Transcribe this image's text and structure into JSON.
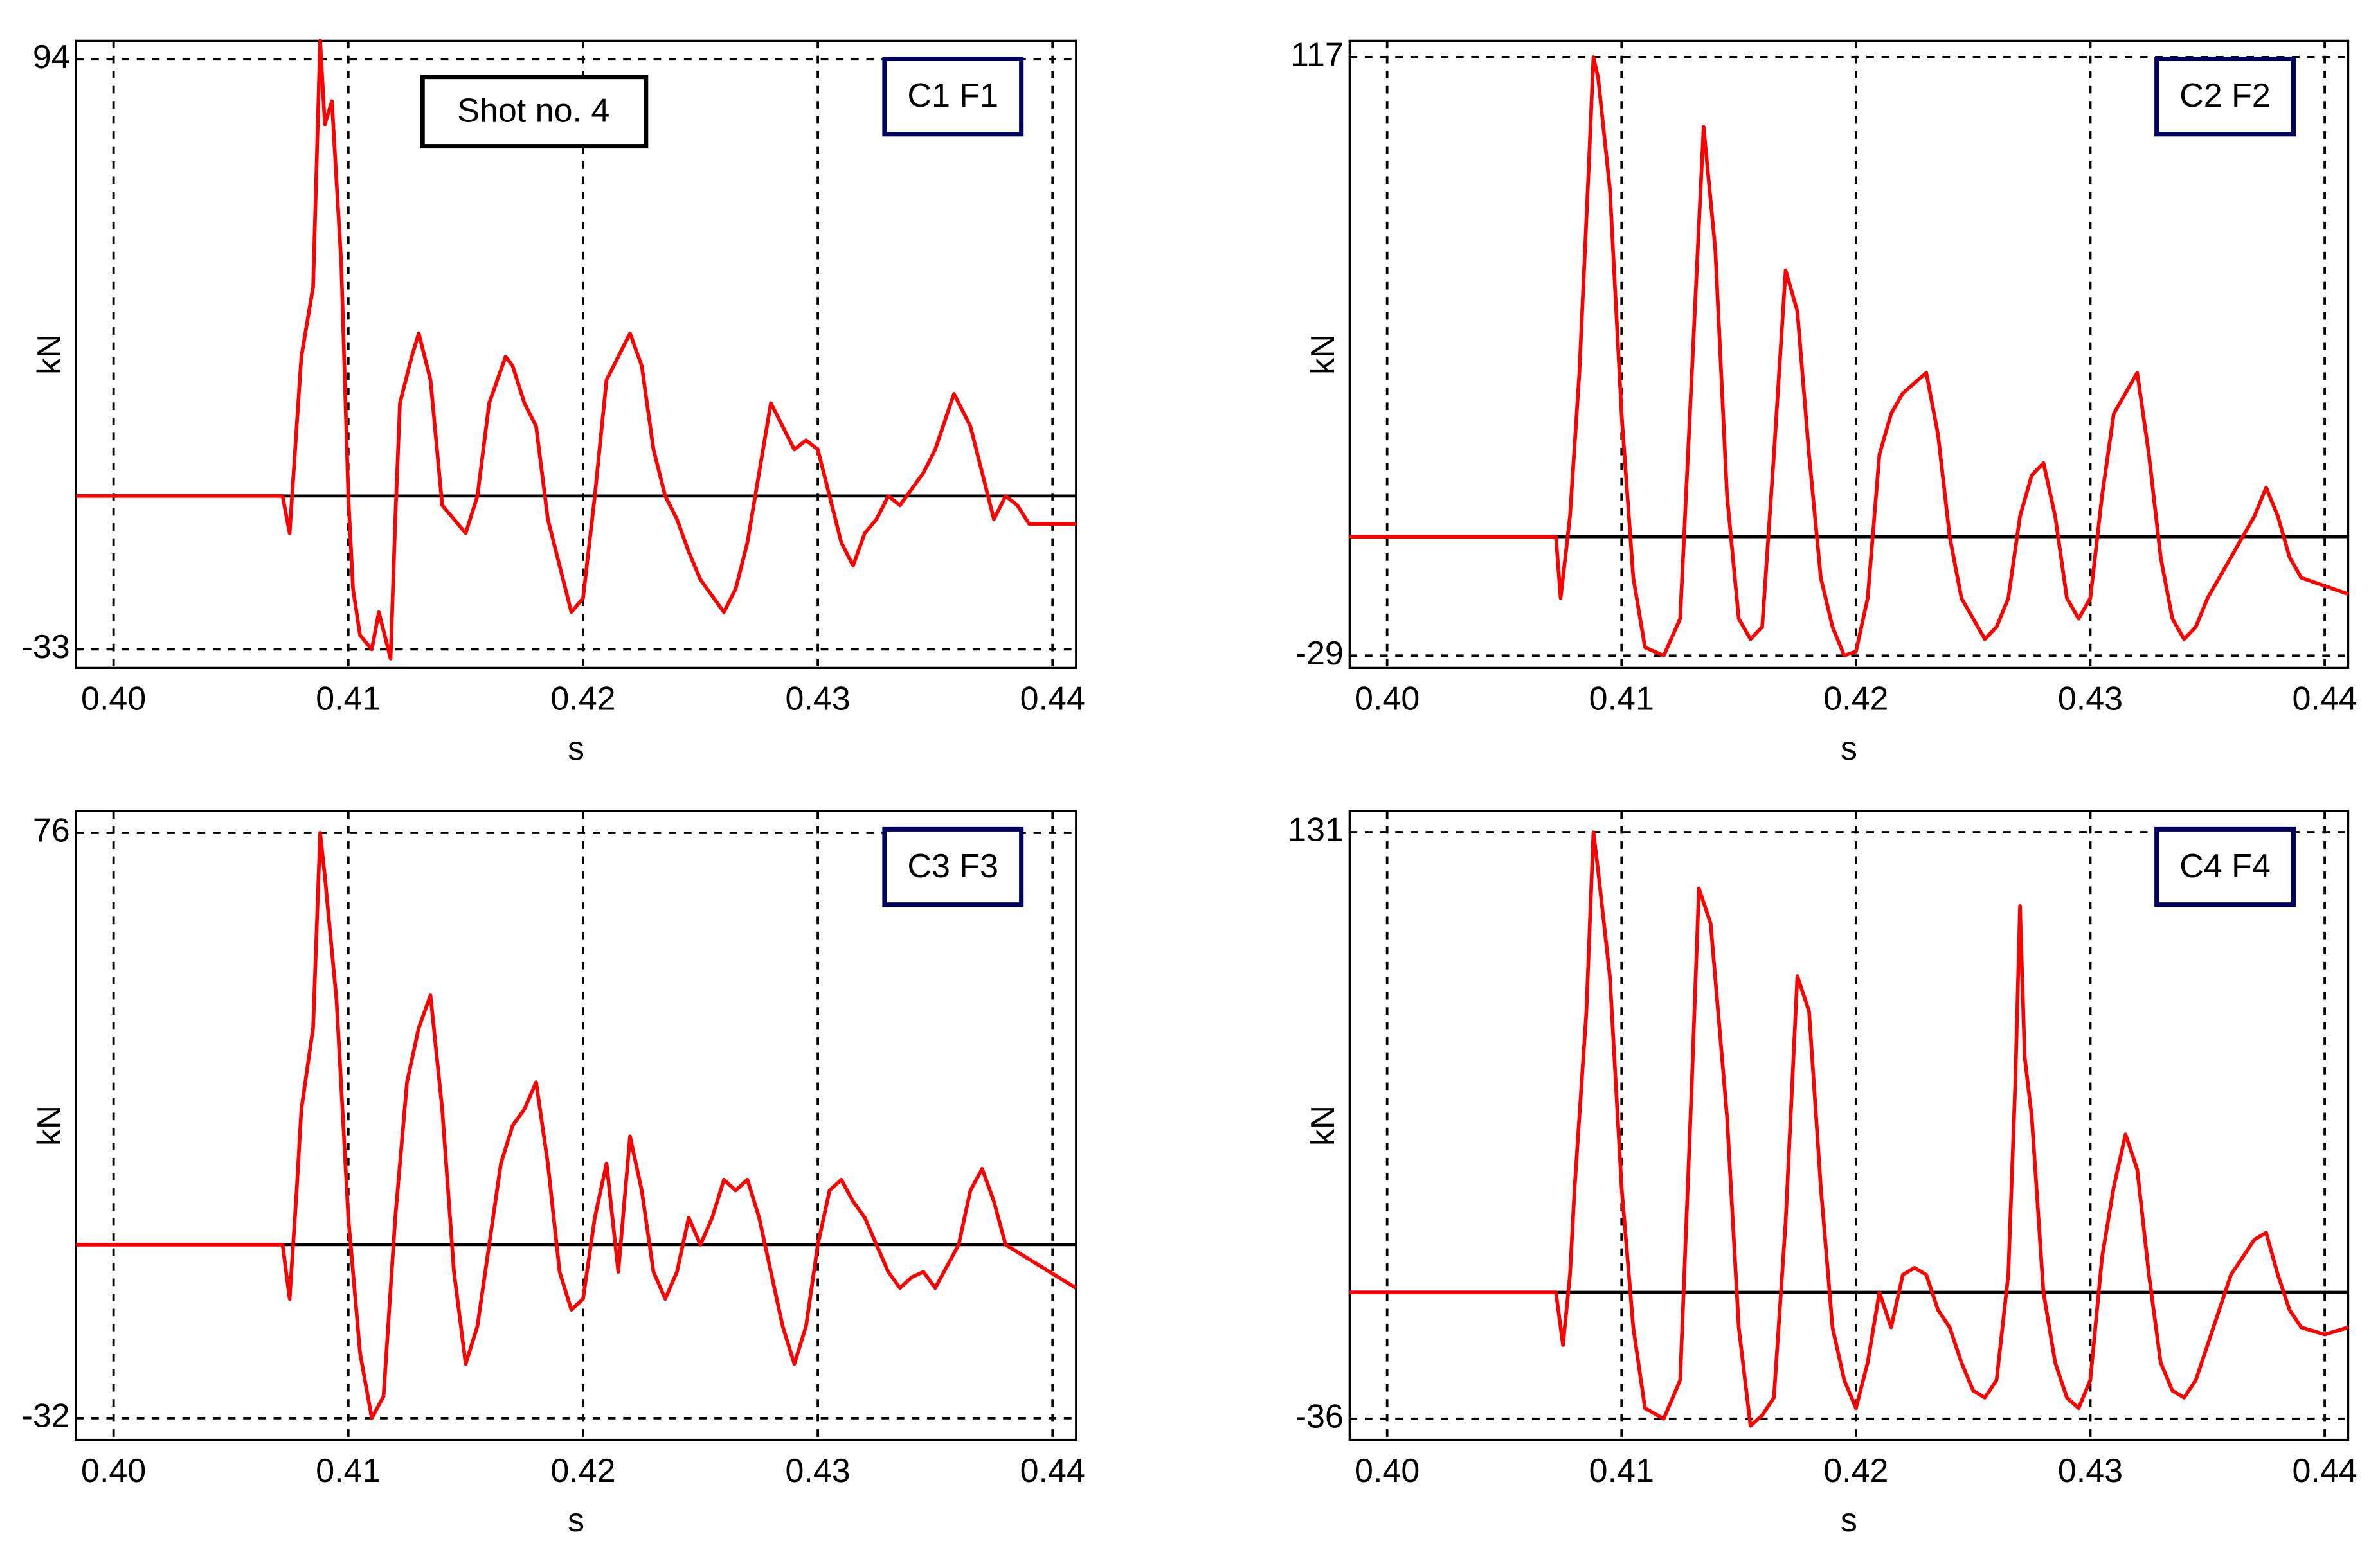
{
  "chart_data": [
    {
      "type": "line",
      "annotation": "C1 F1",
      "note": "Shot no. 4",
      "x_label": "s",
      "y_label": "kN",
      "color": "#ff0000",
      "grid": true,
      "xlim": [
        0.3984,
        0.441
      ],
      "ylim": [
        -37,
        98
      ],
      "xticks": [
        {
          "value": 0.4,
          "label": "0.40"
        },
        0.41,
        0.42,
        0.43,
        0.44
      ],
      "yticks": [
        -33,
        94
      ],
      "x": [
        0.3984,
        0.4072,
        0.4075,
        0.4078,
        0.408,
        0.4085,
        0.4088,
        0.409,
        0.4093,
        0.4097,
        0.41,
        0.4102,
        0.4105,
        0.411,
        0.4113,
        0.4118,
        0.412,
        0.4122,
        0.4127,
        0.413,
        0.4135,
        0.414,
        0.4145,
        0.415,
        0.4155,
        0.416,
        0.4167,
        0.417,
        0.4175,
        0.418,
        0.4185,
        0.419,
        0.4195,
        0.42,
        0.4205,
        0.421,
        0.4215,
        0.422,
        0.4225,
        0.423,
        0.4235,
        0.424,
        0.4245,
        0.425,
        0.426,
        0.4265,
        0.427,
        0.4275,
        0.428,
        0.4285,
        0.429,
        0.4295,
        0.43,
        0.4305,
        0.431,
        0.4315,
        0.432,
        0.4325,
        0.433,
        0.4335,
        0.4345,
        0.435,
        0.4358,
        0.4365,
        0.437,
        0.4375,
        0.438,
        0.4385,
        0.439,
        0.441
      ],
      "values": [
        0,
        0,
        -8,
        15,
        30,
        45,
        98,
        80,
        85,
        50,
        0,
        -20,
        -30,
        -33,
        -25,
        -35,
        -5,
        20,
        30,
        35,
        25,
        -2,
        -5,
        -8,
        0,
        20,
        30,
        28,
        20,
        15,
        -5,
        -15,
        -25,
        -22,
        0,
        25,
        30,
        35,
        28,
        10,
        0,
        -5,
        -12,
        -18,
        -25,
        -20,
        -10,
        5,
        20,
        15,
        10,
        12,
        10,
        0,
        -10,
        -15,
        -8,
        -5,
        0,
        -2,
        5,
        10,
        22,
        15,
        5,
        -5,
        0,
        -2,
        -6,
        -6
      ]
    },
    {
      "type": "line",
      "annotation": "C2 F2",
      "x_label": "s",
      "y_label": "kN",
      "color": "#ff0000",
      "grid": true,
      "xlim": [
        0.3984,
        0.441
      ],
      "ylim": [
        -32,
        121
      ],
      "xticks": [
        {
          "value": 0.4,
          "label": "0.40"
        },
        0.41,
        0.42,
        0.43,
        0.44
      ],
      "yticks": [
        -29,
        117
      ],
      "x": [
        0.3984,
        0.4072,
        0.4074,
        0.4078,
        0.4082,
        0.4086,
        0.4088,
        0.409,
        0.4095,
        0.41,
        0.4105,
        0.411,
        0.4118,
        0.4125,
        0.413,
        0.4135,
        0.414,
        0.4145,
        0.415,
        0.4155,
        0.416,
        0.4165,
        0.417,
        0.4175,
        0.418,
        0.4185,
        0.419,
        0.4195,
        0.42,
        0.4205,
        0.421,
        0.4215,
        0.422,
        0.423,
        0.4235,
        0.424,
        0.4245,
        0.425,
        0.4255,
        0.426,
        0.4265,
        0.427,
        0.4275,
        0.428,
        0.4285,
        0.429,
        0.4295,
        0.43,
        0.4305,
        0.431,
        0.432,
        0.4325,
        0.433,
        0.4335,
        0.434,
        0.4345,
        0.435,
        0.4355,
        0.436,
        0.437,
        0.4375,
        0.438,
        0.4385,
        0.439,
        0.44,
        0.441
      ],
      "values": [
        0,
        0,
        -15,
        5,
        40,
        90,
        117,
        112,
        85,
        30,
        -10,
        -27,
        -29,
        -20,
        40,
        100,
        70,
        10,
        -20,
        -25,
        -22,
        20,
        65,
        55,
        20,
        -10,
        -22,
        -29,
        -28,
        -15,
        20,
        30,
        35,
        40,
        25,
        0,
        -15,
        -20,
        -25,
        -22,
        -15,
        5,
        15,
        18,
        5,
        -15,
        -20,
        -15,
        10,
        30,
        40,
        20,
        -5,
        -20,
        -25,
        -22,
        -15,
        -10,
        -5,
        5,
        12,
        5,
        -5,
        -10,
        -12,
        -14
      ]
    },
    {
      "type": "line",
      "annotation": "C3 F3",
      "x_label": "s",
      "y_label": "kN",
      "color": "#ff0000",
      "grid": true,
      "xlim": [
        0.3984,
        0.441
      ],
      "ylim": [
        -36,
        80
      ],
      "xticks": [
        {
          "value": 0.4,
          "label": "0.40"
        },
        0.41,
        0.42,
        0.43,
        0.44
      ],
      "yticks": [
        -32,
        76
      ],
      "x": [
        0.3984,
        0.4072,
        0.4075,
        0.4078,
        0.408,
        0.4085,
        0.4088,
        0.409,
        0.4095,
        0.41,
        0.4105,
        0.411,
        0.4115,
        0.412,
        0.4125,
        0.413,
        0.4135,
        0.414,
        0.4145,
        0.415,
        0.4155,
        0.416,
        0.4165,
        0.417,
        0.4175,
        0.418,
        0.4185,
        0.419,
        0.4195,
        0.42,
        0.4205,
        0.421,
        0.4215,
        0.422,
        0.4225,
        0.423,
        0.4235,
        0.424,
        0.4245,
        0.425,
        0.4255,
        0.426,
        0.4265,
        0.427,
        0.4275,
        0.428,
        0.4285,
        0.429,
        0.4295,
        0.43,
        0.4305,
        0.431,
        0.4315,
        0.432,
        0.4325,
        0.433,
        0.4335,
        0.434,
        0.4345,
        0.435,
        0.436,
        0.4365,
        0.437,
        0.4375,
        0.438,
        0.441
      ],
      "values": [
        0,
        0,
        -10,
        10,
        25,
        40,
        76,
        68,
        45,
        5,
        -20,
        -32,
        -28,
        5,
        30,
        40,
        46,
        25,
        -5,
        -22,
        -15,
        0,
        15,
        22,
        25,
        30,
        15,
        -5,
        -12,
        -10,
        5,
        15,
        -5,
        20,
        10,
        -5,
        -10,
        -5,
        5,
        0,
        5,
        12,
        10,
        12,
        5,
        -5,
        -15,
        -22,
        -15,
        0,
        10,
        12,
        8,
        5,
        0,
        -5,
        -8,
        -6,
        -5,
        -8,
        0,
        10,
        14,
        8,
        0,
        -8
      ]
    },
    {
      "type": "line",
      "annotation": "C4 F4",
      "x_label": "s",
      "y_label": "kN",
      "color": "#ff0000",
      "grid": true,
      "xlim": [
        0.3984,
        0.441
      ],
      "ylim": [
        -42,
        137
      ],
      "xticks": [
        {
          "value": 0.4,
          "label": "0.40"
        },
        0.41,
        0.42,
        0.43,
        0.44
      ],
      "yticks": [
        -36,
        131
      ],
      "x": [
        0.3984,
        0.4072,
        0.4075,
        0.4078,
        0.408,
        0.4085,
        0.4088,
        0.409,
        0.4095,
        0.41,
        0.4105,
        0.411,
        0.4118,
        0.4125,
        0.413,
        0.4133,
        0.4138,
        0.4145,
        0.415,
        0.4155,
        0.416,
        0.4165,
        0.417,
        0.4175,
        0.418,
        0.4185,
        0.419,
        0.4195,
        0.42,
        0.4205,
        0.421,
        0.4215,
        0.422,
        0.4225,
        0.423,
        0.4235,
        0.424,
        0.4245,
        0.425,
        0.4255,
        0.426,
        0.4265,
        0.4268,
        0.427,
        0.4272,
        0.4275,
        0.428,
        0.4285,
        0.429,
        0.4295,
        0.43,
        0.4305,
        0.431,
        0.4315,
        0.432,
        0.4325,
        0.433,
        0.4335,
        0.434,
        0.4345,
        0.435,
        0.436,
        0.437,
        0.4375,
        0.438,
        0.4385,
        0.439,
        0.44,
        0.441
      ],
      "values": [
        0,
        0,
        -15,
        5,
        30,
        80,
        131,
        120,
        90,
        30,
        -10,
        -33,
        -36,
        -25,
        60,
        115,
        105,
        50,
        -10,
        -38,
        -35,
        -30,
        20,
        90,
        80,
        30,
        -10,
        -25,
        -33,
        -20,
        0,
        -10,
        5,
        7,
        5,
        -5,
        -10,
        -20,
        -28,
        -30,
        -25,
        5,
        60,
        110,
        67,
        50,
        0,
        -20,
        -30,
        -33,
        -25,
        10,
        30,
        45,
        35,
        5,
        -20,
        -28,
        -30,
        -25,
        -15,
        5,
        15,
        17,
        5,
        -5,
        -10,
        -12,
        -10
      ]
    }
  ]
}
